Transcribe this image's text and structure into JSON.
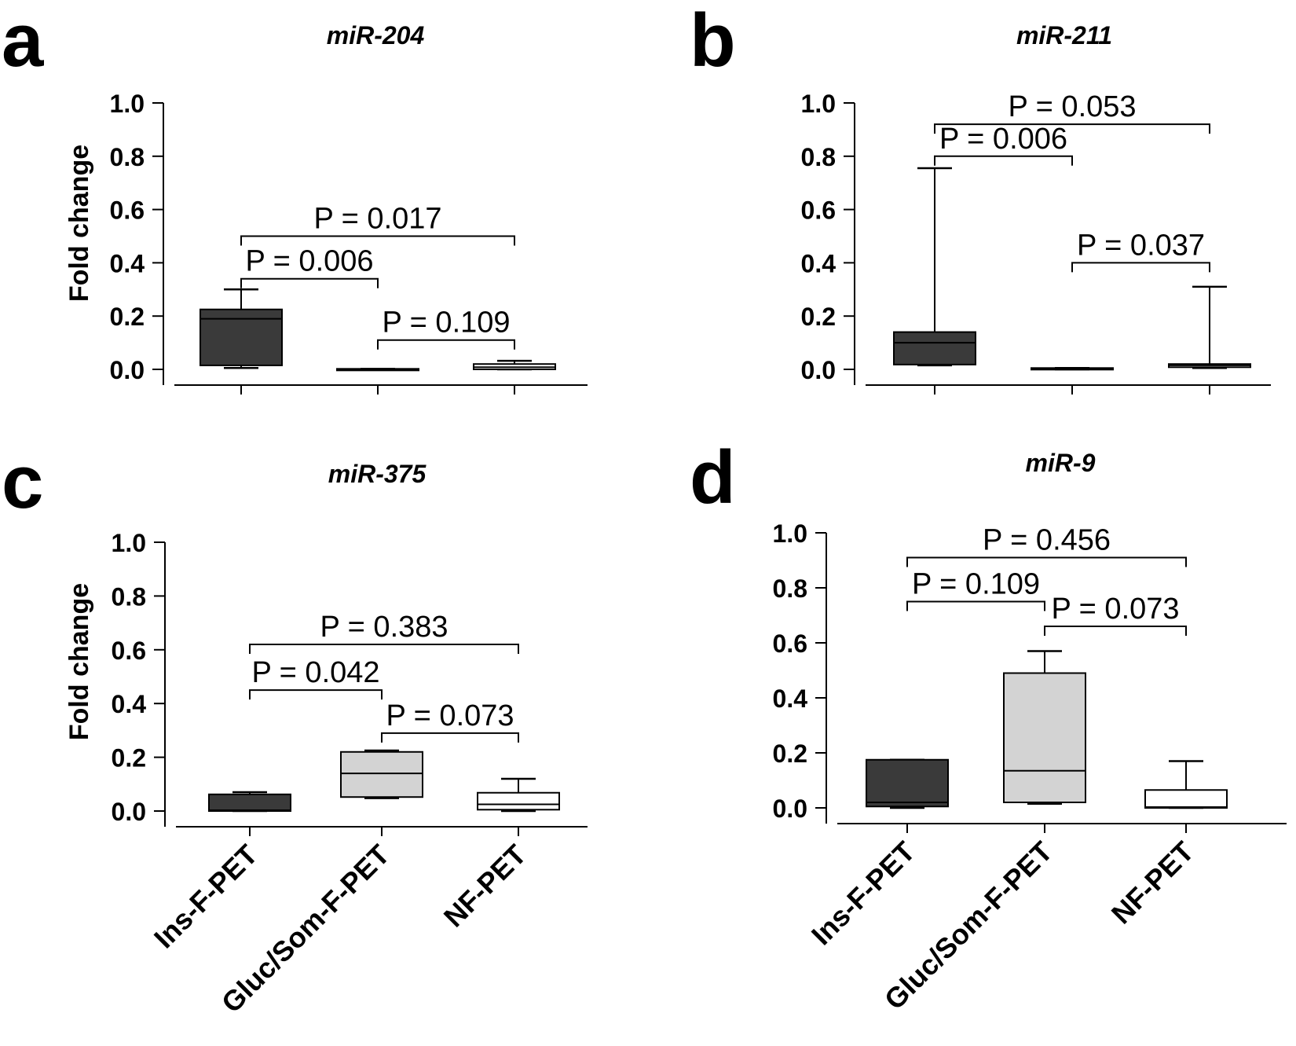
{
  "chart_data": [
    {
      "type": "box",
      "panel_label": "a",
      "title": "miR-204",
      "ylabel": "Fold change",
      "ylim": [
        0,
        1.0
      ],
      "yticks": [
        0.0,
        0.2,
        0.4,
        0.6,
        0.8,
        1.0
      ],
      "ytick_labels": [
        "0.0",
        "0.2",
        "0.4",
        "0.6",
        "0.8",
        "1.0"
      ],
      "categories": [
        "Ins-F-PET",
        "Gluc/Som-F-PET",
        "NF-PET"
      ],
      "show_category_labels": false,
      "boxes": [
        {
          "name": "Ins-F-PET",
          "min": 0.005,
          "q1": 0.015,
          "median": 0.19,
          "q3": 0.225,
          "max": 0.3,
          "color": "#3a3a3a"
        },
        {
          "name": "Gluc/Som-F-PET",
          "min": 0.0,
          "q1": 0.0,
          "median": 0.0,
          "q3": 0.002,
          "max": 0.002,
          "color": "#d3d3d3"
        },
        {
          "name": "NF-PET",
          "min": 0.0,
          "q1": 0.0,
          "median": 0.008,
          "q3": 0.02,
          "max": 0.032,
          "color": "#ffffff"
        }
      ],
      "comparisons": [
        {
          "from": 0,
          "to": 2,
          "y": 0.5,
          "label": "P = 0.017"
        },
        {
          "from": 0,
          "to": 1,
          "y": 0.34,
          "label": "P = 0.006"
        },
        {
          "from": 1,
          "to": 2,
          "y": 0.11,
          "label": "P = 0.109"
        }
      ]
    },
    {
      "type": "box",
      "panel_label": "b",
      "title": "miR-211",
      "ylabel": "",
      "ylim": [
        0,
        1.0
      ],
      "yticks": [
        0.0,
        0.2,
        0.4,
        0.6,
        0.8,
        1.0
      ],
      "ytick_labels": [
        "0.0",
        "0.2",
        "0.4",
        "0.6",
        "0.8",
        "1.0"
      ],
      "categories": [
        "Ins-F-PET",
        "Gluc/Som-F-PET",
        "NF-PET"
      ],
      "show_category_labels": false,
      "boxes": [
        {
          "name": "Ins-F-PET",
          "min": 0.015,
          "q1": 0.018,
          "median": 0.1,
          "q3": 0.14,
          "max": 0.755,
          "color": "#3a3a3a"
        },
        {
          "name": "Gluc/Som-F-PET",
          "min": 0.0,
          "q1": 0.0,
          "median": 0.002,
          "q3": 0.005,
          "max": 0.005,
          "color": "#d3d3d3"
        },
        {
          "name": "NF-PET",
          "min": 0.005,
          "q1": 0.008,
          "median": 0.015,
          "q3": 0.02,
          "max": 0.31,
          "color": "#ffffff"
        }
      ],
      "comparisons": [
        {
          "from": 0,
          "to": 2,
          "y": 0.92,
          "label": "P = 0.053"
        },
        {
          "from": 0,
          "to": 1,
          "y": 0.8,
          "label": "P = 0.006"
        },
        {
          "from": 1,
          "to": 2,
          "y": 0.4,
          "label": "P = 0.037"
        }
      ]
    },
    {
      "type": "box",
      "panel_label": "c",
      "title": "miR-375",
      "ylabel": "Fold change",
      "ylim": [
        0,
        1.0
      ],
      "yticks": [
        0.0,
        0.2,
        0.4,
        0.6,
        0.8,
        1.0
      ],
      "ytick_labels": [
        "0.0",
        "0.2",
        "0.4",
        "0.6",
        "0.8",
        "1.0"
      ],
      "categories": [
        "Ins-F-PET",
        "Gluc/Som-F-PET",
        "NF-PET"
      ],
      "show_category_labels": true,
      "boxes": [
        {
          "name": "Ins-F-PET",
          "min": 0.0,
          "q1": 0.0,
          "median": 0.003,
          "q3": 0.062,
          "max": 0.07,
          "color": "#3a3a3a"
        },
        {
          "name": "Gluc/Som-F-PET",
          "min": 0.048,
          "q1": 0.052,
          "median": 0.14,
          "q3": 0.22,
          "max": 0.225,
          "color": "#d3d3d3"
        },
        {
          "name": "NF-PET",
          "min": 0.0,
          "q1": 0.005,
          "median": 0.025,
          "q3": 0.068,
          "max": 0.12,
          "color": "#ffffff"
        }
      ],
      "comparisons": [
        {
          "from": 0,
          "to": 2,
          "y": 0.62,
          "label": "P = 0.383"
        },
        {
          "from": 0,
          "to": 1,
          "y": 0.45,
          "label": "P = 0.042"
        },
        {
          "from": 1,
          "to": 2,
          "y": 0.29,
          "label": "P = 0.073"
        }
      ]
    },
    {
      "type": "box",
      "panel_label": "d",
      "title": "miR-9",
      "ylabel": "",
      "ylim": [
        0,
        1.0
      ],
      "yticks": [
        0.0,
        0.2,
        0.4,
        0.6,
        0.8,
        1.0
      ],
      "ytick_labels": [
        "0.0",
        "0.2",
        "0.4",
        "0.6",
        "0.8",
        "1.0"
      ],
      "categories": [
        "Ins-F-PET",
        "Gluc/Som-F-PET",
        "NF-PET"
      ],
      "show_category_labels": true,
      "boxes": [
        {
          "name": "Ins-F-PET",
          "min": 0.0,
          "q1": 0.005,
          "median": 0.02,
          "q3": 0.175,
          "max": 0.175,
          "color": "#3a3a3a"
        },
        {
          "name": "Gluc/Som-F-PET",
          "min": 0.015,
          "q1": 0.02,
          "median": 0.135,
          "q3": 0.49,
          "max": 0.57,
          "color": "#d3d3d3"
        },
        {
          "name": "NF-PET",
          "min": 0.0,
          "q1": 0.0,
          "median": 0.003,
          "q3": 0.065,
          "max": 0.17,
          "color": "#ffffff"
        }
      ],
      "comparisons": [
        {
          "from": 0,
          "to": 2,
          "y": 0.91,
          "label": "P = 0.456"
        },
        {
          "from": 0,
          "to": 1,
          "y": 0.75,
          "label": "P = 0.109"
        },
        {
          "from": 1,
          "to": 2,
          "y": 0.66,
          "label": "P = 0.073"
        }
      ]
    }
  ]
}
